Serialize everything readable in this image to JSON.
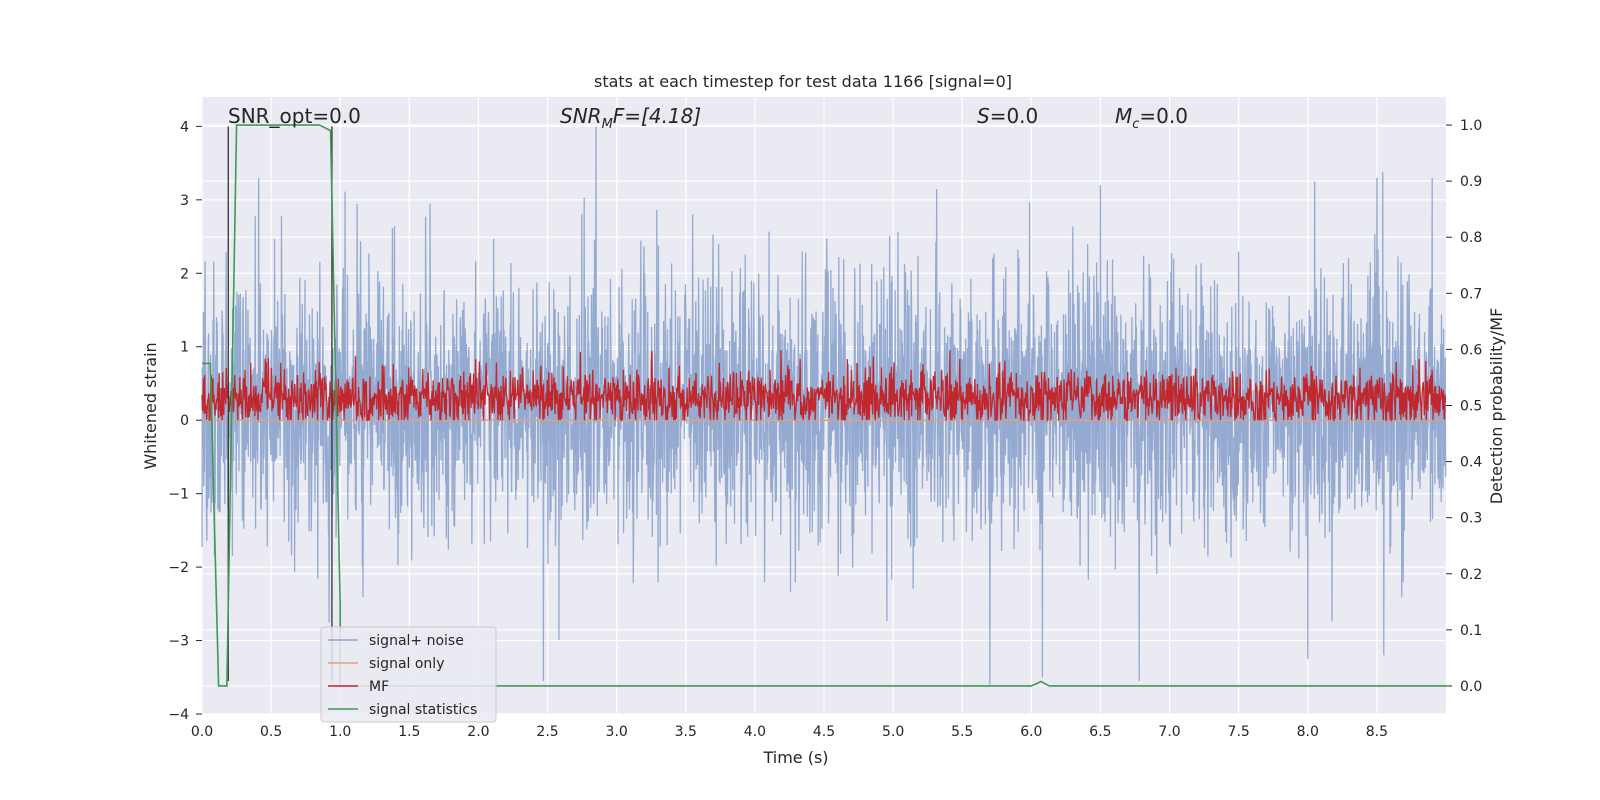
{
  "chart_data": {
    "type": "line",
    "title": "stats at each timestep for test data 1166 [signal=0]",
    "xlabel": "Time (s)",
    "ylabel": "Whitened strain",
    "ylabel_right": "Detection probability/MF",
    "xlim": [
      0,
      9
    ],
    "ylim": [
      -4,
      4.4
    ],
    "ylim_right": [
      -0.05,
      1.05
    ],
    "grid": true,
    "legend_position": "lower-left",
    "xticks": [
      "0.0",
      "0.5",
      "1.0",
      "1.5",
      "2.0",
      "2.5",
      "3.0",
      "3.5",
      "4.0",
      "4.5",
      "5.0",
      "5.5",
      "6.0",
      "6.5",
      "7.0",
      "7.5",
      "8.0",
      "8.5"
    ],
    "yticks": [
      "−4",
      "−3",
      "−2",
      "−1",
      "0",
      "1",
      "2",
      "3",
      "4"
    ],
    "yticks_right": [
      "0.0",
      "0.1",
      "0.2",
      "0.3",
      "0.4",
      "0.5",
      "0.6",
      "0.7",
      "0.8",
      "0.9",
      "1.0"
    ],
    "annotations": {
      "snr_opt": "SNR_opt=0.0",
      "snr_mf_main": "SNR",
      "snr_mf_sub": "M",
      "snr_mf_tail": "F=[4.18]",
      "s_main": "S",
      "s_tail": "=0.0",
      "mc_main": "M",
      "mc_sub": "c",
      "mc_tail": "=0.0"
    },
    "vertical_lines_x": [
      0.19,
      0.94
    ],
    "series": [
      {
        "name": "signal+ noise",
        "color": "#8fa6cf",
        "axis": "left",
        "description_range": [
          -3.6,
          4.0
        ],
        "peaks": [
          {
            "x": 2.85,
            "y": 4.0
          },
          {
            "x": 0.41,
            "y": 3.3
          },
          {
            "x": 8.5,
            "y": 3.3
          },
          {
            "x": 6.5,
            "y": 3.2
          },
          {
            "x": 8.05,
            "y": 3.25
          },
          {
            "x": 1.65,
            "y": 2.95
          },
          {
            "x": 3.55,
            "y": 2.8
          },
          {
            "x": 8.9,
            "y": 3.3
          }
        ],
        "troughs": [
          {
            "x": 2.47,
            "y": -3.55
          },
          {
            "x": 5.7,
            "y": -3.6
          },
          {
            "x": 6.08,
            "y": -3.5
          },
          {
            "x": 6.78,
            "y": -3.55
          },
          {
            "x": 8.0,
            "y": -3.25
          },
          {
            "x": 8.55,
            "y": -3.2
          }
        ]
      },
      {
        "name": "signal only",
        "color": "#e39f7f",
        "axis": "left",
        "constant_value": 0.0
      },
      {
        "name": "MF",
        "color": "#c0282e",
        "axis": "left",
        "description_range": [
          0.0,
          1.0
        ],
        "baseline": 0.3
      },
      {
        "name": "signal statistics",
        "color": "#3f9a52",
        "axis": "right",
        "points": [
          {
            "x": 0.0,
            "y": 0.575
          },
          {
            "x": 0.06,
            "y": 0.575
          },
          {
            "x": 0.12,
            "y": 0.0
          },
          {
            "x": 0.18,
            "y": 0.0
          },
          {
            "x": 0.25,
            "y": 1.0
          },
          {
            "x": 0.85,
            "y": 1.0
          },
          {
            "x": 0.93,
            "y": 0.99
          },
          {
            "x": 1.0,
            "y": 0.14
          },
          {
            "x": 1.0,
            "y": 0.0
          },
          {
            "x": 6.0,
            "y": 0.0
          },
          {
            "x": 6.07,
            "y": 0.008
          },
          {
            "x": 6.13,
            "y": 0.0
          },
          {
            "x": 9.0,
            "y": 0.0
          }
        ]
      }
    ]
  }
}
